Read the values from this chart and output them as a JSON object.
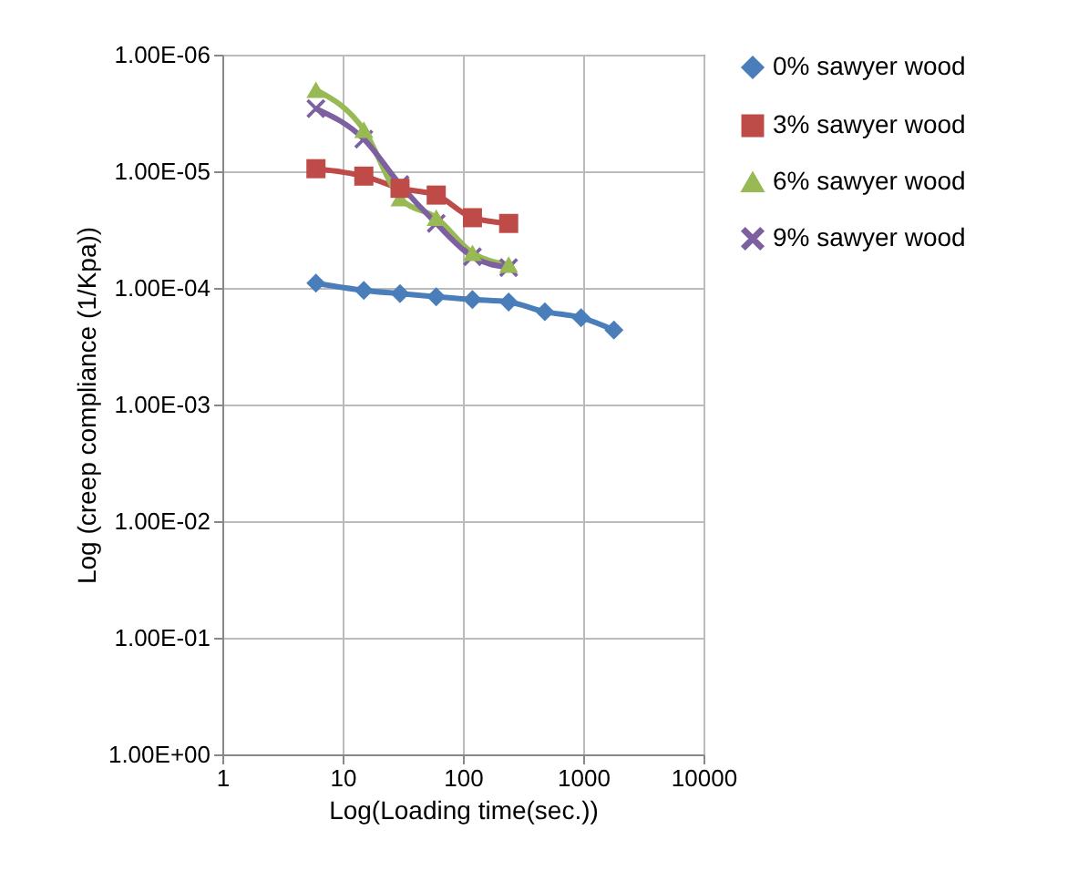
{
  "chart_data": {
    "type": "line",
    "xlabel": "Log(Loading time(sec.))",
    "ylabel": "Log (creep compliance (1/Kpa))",
    "log": "xy",
    "grid": true,
    "legend": "right",
    "line_style": "solid",
    "xlim": [
      1,
      10000
    ],
    "xticks": [
      1,
      10,
      100,
      1000,
      10000
    ],
    "ylim": [
      1,
      1e-06
    ],
    "yticks": [
      {
        "value": 1e-06,
        "label": "1.00E-06"
      },
      {
        "value": 1e-05,
        "label": "1.00E-05"
      },
      {
        "value": 0.0001,
        "label": "1.00E-04"
      },
      {
        "value": 0.001,
        "label": "1.00E-03"
      },
      {
        "value": 0.01,
        "label": "1.00E-02"
      },
      {
        "value": 0.1,
        "label": "1.00E-01"
      },
      {
        "value": 1,
        "label": "1.00E+00"
      }
    ],
    "series": [
      {
        "name": "0% sawyer wood",
        "color": "#4a7ebb",
        "marker": "diamond",
        "x": [
          6,
          15,
          30,
          60,
          120,
          240,
          480,
          960,
          1800
        ],
        "values": [
          9.1e-05,
          0.000105,
          0.000112,
          0.000119,
          0.000126,
          0.000132,
          0.00016,
          0.00018,
          0.00023
        ]
      },
      {
        "name": "3% sawyer wood",
        "color": "#be4b48",
        "marker": "square",
        "x": [
          6,
          15,
          30,
          60,
          120,
          240
        ],
        "values": [
          9.5e-06,
          1.1e-05,
          1.4e-05,
          1.6e-05,
          2.5e-05,
          2.8e-05
        ]
      },
      {
        "name": "6% sawyer wood",
        "color": "#98b954",
        "marker": "triangle",
        "x": [
          6,
          15,
          30,
          60,
          120,
          240
        ],
        "values": [
          2e-06,
          4.4e-06,
          1.7e-05,
          2.5e-05,
          5e-05,
          6.3e-05
        ]
      },
      {
        "name": "9% sawyer wood",
        "color": "#7d60a0",
        "marker": "cross",
        "x": [
          6,
          15,
          30,
          60,
          120,
          240
        ],
        "values": [
          2.9e-06,
          5.3e-06,
          1.3e-05,
          2.8e-05,
          5.4e-05,
          6.7e-05
        ]
      }
    ]
  }
}
